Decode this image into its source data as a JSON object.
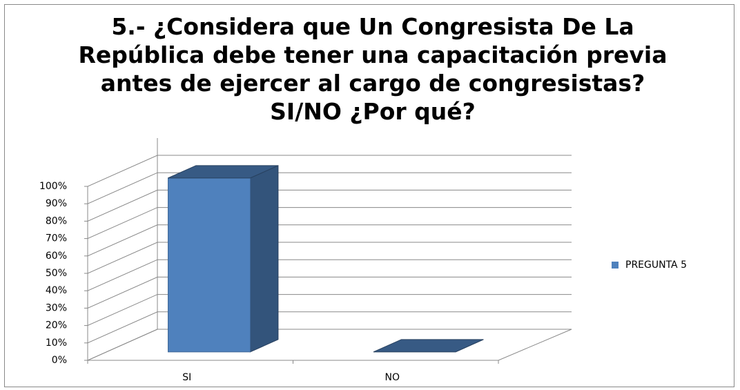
{
  "chart_data": {
    "type": "bar3d",
    "title": "5.- ¿Considera que Un Congresista De La República debe tener una capacitación previa antes de ejercer al cargo de congresistas? SI/NO ¿Por qué?",
    "categories": [
      "SI",
      "NO"
    ],
    "series": [
      {
        "name": "PREGUNTA 5",
        "color": "#4f81bd",
        "values": [
          100,
          0
        ]
      }
    ],
    "ylim": [
      0,
      100
    ],
    "yticks": [
      {
        "value": 0,
        "label": "0%"
      },
      {
        "value": 10,
        "label": "10%"
      },
      {
        "value": 20,
        "label": "20%"
      },
      {
        "value": 30,
        "label": "30%"
      },
      {
        "value": 40,
        "label": "40%"
      },
      {
        "value": 50,
        "label": "50%"
      },
      {
        "value": 60,
        "label": "60%"
      },
      {
        "value": 70,
        "label": "70%"
      },
      {
        "value": 80,
        "label": "80%"
      },
      {
        "value": 90,
        "label": "90%"
      },
      {
        "value": 100,
        "label": "100%"
      }
    ],
    "grid": true,
    "legend": "right"
  }
}
